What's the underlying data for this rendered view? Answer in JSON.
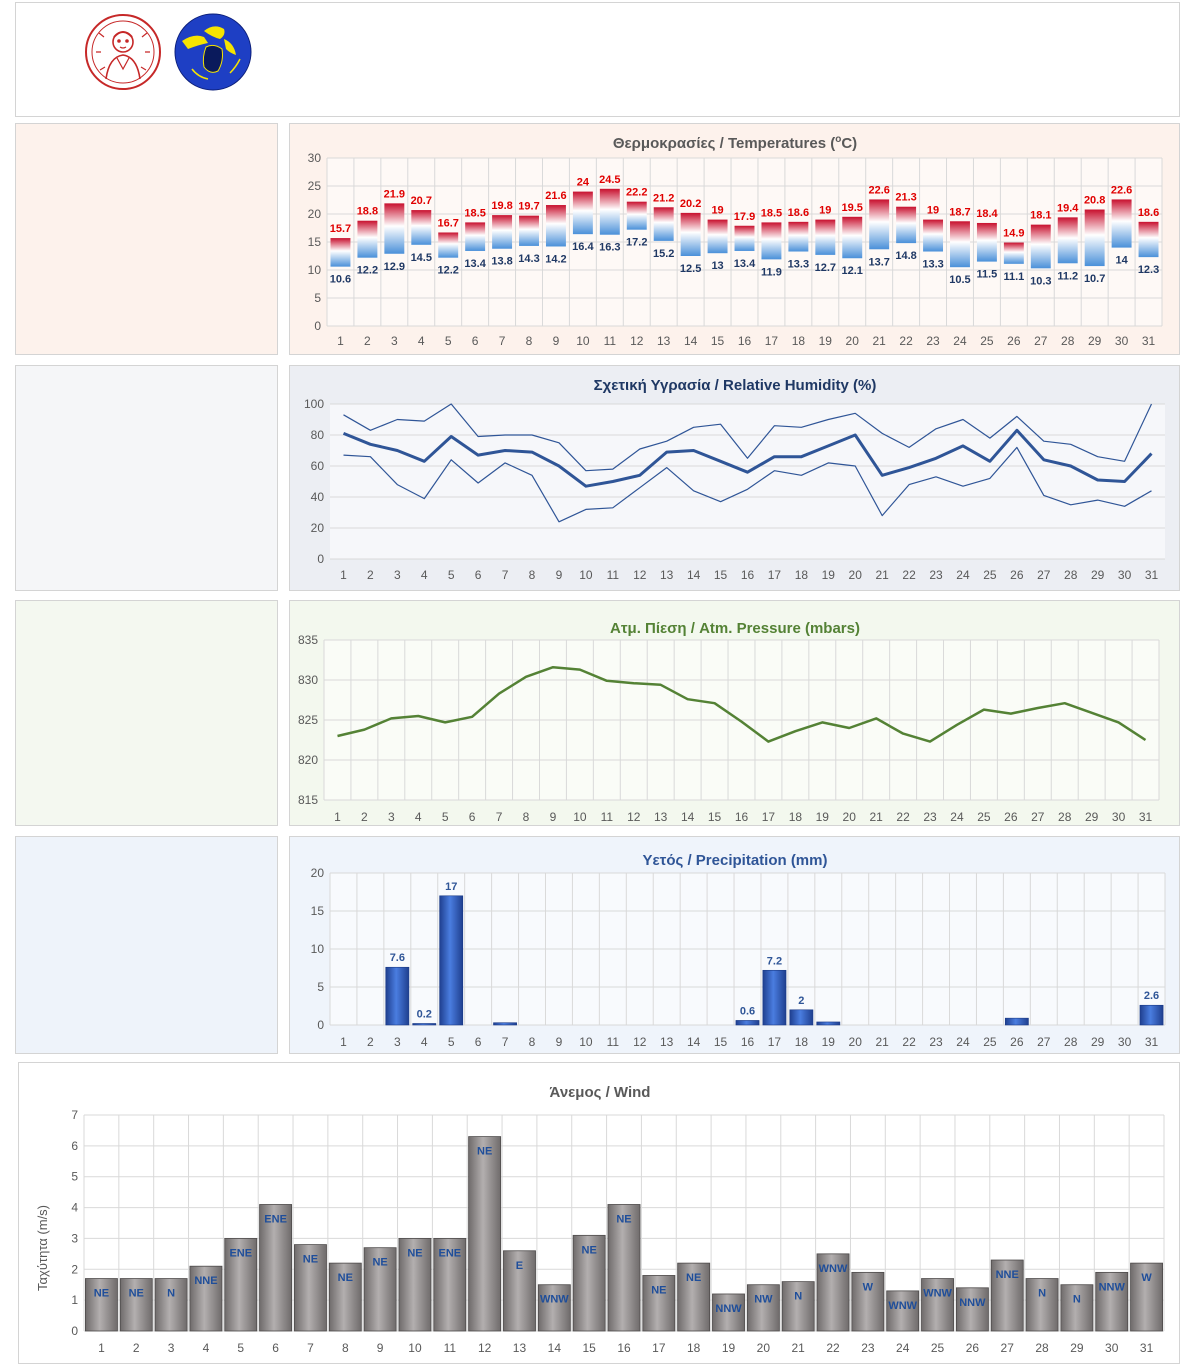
{
  "header": {
    "logos": [
      {
        "name": "university-seal",
        "icon": "portrait-seal-icon",
        "color": "#c62828"
      },
      {
        "name": "department-logo",
        "icon": "blue-circle-emblem-icon",
        "color": "#1e3fc4",
        "accent": "#f6e400"
      }
    ]
  },
  "colors": {
    "temp_max_label": "#e00000",
    "temp_min_label": "#1f3864",
    "humidity": "#2f5597",
    "pressure": "#548235",
    "precip_bar": "#2f5bb7",
    "precip_title": "#2f5597",
    "wind_bar": "#8c8888",
    "wind_label": "#1f4e9a",
    "grid": "#d9d9d9",
    "axis_text": "#595959"
  },
  "chart_data": [
    {
      "id": "temperature",
      "type": "bar",
      "title": "Θερμοκρασίες / Temperatures (",
      "title_sup": "o",
      "title_end": "C)",
      "categories": [
        "1",
        "2",
        "3",
        "4",
        "5",
        "6",
        "7",
        "8",
        "9",
        "10",
        "11",
        "12",
        "13",
        "14",
        "15",
        "16",
        "17",
        "18",
        "19",
        "20",
        "21",
        "22",
        "23",
        "24",
        "25",
        "26",
        "27",
        "28",
        "29",
        "30",
        "31"
      ],
      "series": [
        {
          "name": "max",
          "values": [
            15.7,
            18.8,
            21.9,
            20.7,
            16.7,
            18.5,
            19.8,
            19.7,
            21.6,
            24,
            24.5,
            22.2,
            21.2,
            20.2,
            19,
            17.9,
            18.5,
            18.6,
            19,
            19.5,
            22.6,
            21.3,
            19,
            18.7,
            18.4,
            14.9,
            18.1,
            19.4,
            20.8,
            22.6,
            18.6
          ]
        },
        {
          "name": "min",
          "values": [
            10.6,
            12.2,
            12.9,
            14.5,
            12.2,
            13.4,
            13.8,
            14.3,
            14.2,
            16.4,
            16.3,
            17.2,
            15.2,
            12.5,
            13,
            13.4,
            11.9,
            13.3,
            12.7,
            12.1,
            13.7,
            14.8,
            13.3,
            10.5,
            11.5,
            11.1,
            10.3,
            11.2,
            10.7,
            14,
            12.3
          ]
        }
      ],
      "ylim": [
        0,
        30
      ],
      "yticks": [
        0,
        5,
        10,
        15,
        20,
        25,
        30
      ],
      "grid": true
    },
    {
      "id": "humidity",
      "type": "line",
      "title": "Σχετική Υγρασία / Relative Humidity (%)",
      "categories": [
        "1",
        "2",
        "3",
        "4",
        "5",
        "6",
        "7",
        "8",
        "9",
        "10",
        "11",
        "12",
        "13",
        "14",
        "15",
        "16",
        "17",
        "18",
        "19",
        "20",
        "21",
        "22",
        "23",
        "24",
        "25",
        "26",
        "27",
        "28",
        "29",
        "30",
        "31"
      ],
      "series": [
        {
          "name": "max",
          "values": [
            93,
            83,
            90,
            89,
            100,
            79,
            80,
            80,
            75,
            57,
            58,
            71,
            76,
            85,
            87,
            65,
            86,
            85,
            90,
            94,
            81,
            72,
            84,
            90,
            78,
            92,
            76,
            74,
            66,
            63,
            100
          ]
        },
        {
          "name": "mean",
          "values": [
            81,
            74,
            70,
            63,
            79,
            67,
            70,
            69,
            60,
            47,
            50,
            54,
            69,
            70,
            63,
            56,
            66,
            66,
            73,
            80,
            54,
            59,
            65,
            73,
            63,
            83,
            64,
            60,
            51,
            50,
            68
          ]
        },
        {
          "name": "min",
          "values": [
            67,
            66,
            48,
            39,
            64,
            49,
            62,
            54,
            24,
            32,
            33,
            46,
            59,
            44,
            37,
            45,
            57,
            54,
            62,
            60,
            28,
            48,
            53,
            47,
            52,
            72,
            41,
            35,
            38,
            34,
            44
          ]
        }
      ],
      "ylim": [
        0,
        100
      ],
      "yticks": [
        0,
        20,
        40,
        60,
        80,
        100
      ],
      "grid": true
    },
    {
      "id": "pressure",
      "type": "line",
      "title": "Ατμ. Πίεση / Atm. Pressure (mbars)",
      "categories": [
        "1",
        "2",
        "3",
        "4",
        "5",
        "6",
        "7",
        "8",
        "9",
        "10",
        "11",
        "12",
        "13",
        "14",
        "15",
        "16",
        "17",
        "18",
        "19",
        "20",
        "21",
        "22",
        "23",
        "24",
        "25",
        "26",
        "27",
        "28",
        "29",
        "30",
        "31"
      ],
      "series": [
        {
          "name": "pressure",
          "values": [
            823.0,
            823.8,
            825.2,
            825.5,
            824.7,
            825.4,
            828.3,
            830.4,
            831.6,
            831.3,
            829.9,
            829.6,
            829.4,
            827.6,
            827.1,
            824.8,
            822.3,
            823.6,
            824.7,
            824.0,
            825.2,
            823.3,
            822.3,
            824.4,
            826.3,
            825.8,
            826.5,
            827.1,
            825.9,
            824.7,
            822.5
          ]
        }
      ],
      "ylim": [
        815,
        835
      ],
      "yticks": [
        815,
        820,
        825,
        830,
        835
      ],
      "grid": true
    },
    {
      "id": "precipitation",
      "type": "bar",
      "title": "Υετός / Precipitation (mm)",
      "categories": [
        "1",
        "2",
        "3",
        "4",
        "5",
        "6",
        "7",
        "8",
        "9",
        "10",
        "11",
        "12",
        "13",
        "14",
        "15",
        "16",
        "17",
        "18",
        "19",
        "20",
        "21",
        "22",
        "23",
        "24",
        "25",
        "26",
        "27",
        "28",
        "29",
        "30",
        "31"
      ],
      "values": [
        0,
        0,
        7.6,
        0.2,
        17,
        0,
        0.3,
        0,
        0,
        0,
        0,
        0,
        0,
        0,
        0,
        0.6,
        7.2,
        2,
        0.4,
        0,
        0,
        0,
        0,
        0,
        0,
        0.9,
        0,
        0,
        0,
        0,
        2.6
      ],
      "data_labels": [
        "",
        "",
        "7.6",
        "0.2",
        "17",
        "",
        "",
        "",
        "",
        "",
        "",
        "",
        "",
        "",
        "",
        "0.6",
        "7.2",
        "2",
        "",
        "",
        "",
        "",
        "",
        "",
        "",
        "",
        "",
        "",
        "",
        "",
        "2.6"
      ],
      "ylim": [
        0,
        20
      ],
      "yticks": [
        0,
        5,
        10,
        15,
        20
      ],
      "grid": true
    },
    {
      "id": "wind",
      "type": "bar",
      "title": "Άνεμος / Wind",
      "ylabel": "Ταχύτητα  (m/s)",
      "categories": [
        "1",
        "2",
        "3",
        "4",
        "5",
        "6",
        "7",
        "8",
        "9",
        "10",
        "11",
        "12",
        "13",
        "14",
        "15",
        "16",
        "17",
        "18",
        "19",
        "20",
        "21",
        "22",
        "23",
        "24",
        "25",
        "26",
        "27",
        "28",
        "29",
        "30",
        "31"
      ],
      "values": [
        1.7,
        1.7,
        1.7,
        2.1,
        3.0,
        4.1,
        2.8,
        2.2,
        2.7,
        3.0,
        3.0,
        6.3,
        2.6,
        1.5,
        3.1,
        4.1,
        1.8,
        2.2,
        1.2,
        1.5,
        1.6,
        2.5,
        1.9,
        1.3,
        1.7,
        1.4,
        2.3,
        1.7,
        1.5,
        1.9,
        2.2
      ],
      "directions": [
        "NE",
        "NE",
        "N",
        "NNE",
        "ENE",
        "ENE",
        "NE",
        "NE",
        "NE",
        "NE",
        "ENE",
        "NE",
        "E",
        "WNW",
        "NE",
        "NE",
        "NE",
        "NE",
        "NNW",
        "NW",
        "N",
        "WNW",
        "W",
        "WNW",
        "WNW",
        "NNW",
        "NNE",
        "N",
        "N",
        "NNW",
        "W"
      ],
      "ylim": [
        0,
        7
      ],
      "yticks": [
        0,
        1,
        2,
        3,
        4,
        5,
        6,
        7
      ],
      "grid": true
    }
  ]
}
